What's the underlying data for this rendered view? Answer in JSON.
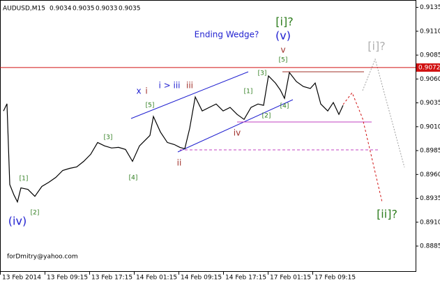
{
  "chart_data": {
    "type": "line",
    "symbol": "AUDUSD,M15",
    "ohlc": [
      0.9034,
      0.9035,
      0.9033,
      0.9035
    ],
    "x": [
      2.5,
      5,
      7,
      10,
      12.5,
      15,
      20,
      25,
      30,
      35,
      40,
      45,
      50,
      55,
      60,
      65,
      70,
      75,
      80,
      85,
      90,
      95,
      100,
      107.5,
      110,
      115,
      120,
      125,
      129,
      132.5,
      136,
      140,
      145,
      150,
      155,
      160,
      165,
      170,
      175,
      180,
      185,
      189,
      192.5,
      197.5,
      201,
      204,
      207.5,
      212.5,
      217.5,
      222.5,
      226,
      230,
      235,
      239,
      243,
      246
    ],
    "series": [
      {
        "name": "AUDUSD",
        "color": "#000000",
        "values": [
          0.90265,
          0.9034,
          0.89495,
          0.89385,
          0.89312,
          0.89459,
          0.89444,
          0.89371,
          0.89474,
          0.89518,
          0.89569,
          0.89642,
          0.89664,
          0.89679,
          0.89737,
          0.89811,
          0.89935,
          0.89899,
          0.89877,
          0.89884,
          0.89862,
          0.89737,
          0.89899,
          0.90009,
          0.90207,
          0.90045,
          0.89935,
          0.89913,
          0.89884,
          0.89869,
          0.90082,
          0.90412,
          0.90265,
          0.90302,
          0.90338,
          0.90265,
          0.90302,
          0.90229,
          0.90177,
          0.90302,
          0.90338,
          0.90324,
          0.90632,
          0.90558,
          0.90485,
          0.90397,
          0.90668,
          0.90573,
          0.90521,
          0.905,
          0.90558,
          0.90338,
          0.90265,
          0.90353,
          0.90229,
          0.90324
        ]
      }
    ],
    "current_price": 0.9072,
    "xlim": [
      0,
      298
    ],
    "xticks": [
      {
        "value": 0,
        "label": "13 Feb 2014"
      },
      {
        "value": 32,
        "label": "13 Feb 09:15"
      },
      {
        "value": 64,
        "label": "13 Feb 17:15"
      },
      {
        "value": 96,
        "label": "14 Feb 01:15"
      },
      {
        "value": 128,
        "label": "14 Feb 09:15"
      },
      {
        "value": 160,
        "label": "14 Feb 17:15"
      },
      {
        "value": 192,
        "label": "17 Feb 01:15"
      },
      {
        "value": 224,
        "label": "17 Feb 09:15"
      }
    ],
    "ylim": [
      0.8858,
      0.9142
    ],
    "yticks": [
      {
        "value": 0.9135,
        "label": "0.9135"
      },
      {
        "value": 0.911,
        "label": "0.9110"
      },
      {
        "value": 0.9085,
        "label": "0.9085"
      },
      {
        "value": 0.906,
        "label": "0.9060"
      },
      {
        "value": 0.9035,
        "label": "0.9035"
      },
      {
        "value": 0.901,
        "label": "0.9010"
      },
      {
        "value": 0.8985,
        "label": "0.8985"
      },
      {
        "value": 0.896,
        "label": "0.8960"
      },
      {
        "value": 0.8935,
        "label": "0.8935"
      },
      {
        "value": 0.891,
        "label": "0.8910"
      },
      {
        "value": 0.8885,
        "label": "0.8885"
      }
    ],
    "annotations": [
      {
        "text": "Ending Wedge?",
        "color": "#1f1fd0"
      },
      {
        "text": "[i]?",
        "color": "#2e7d1e"
      },
      {
        "text": "(v)",
        "color": "#1f1fd0"
      },
      {
        "text": "v",
        "color": "#a0302a"
      },
      {
        "text": "[5]",
        "color": "#2e7d1e"
      },
      {
        "text": "x",
        "color": "#1f1fd0"
      },
      {
        "text": "i",
        "color": "#a0302a"
      },
      {
        "text": "i > iii",
        "color": "#1f1fd0"
      },
      {
        "text": "iii",
        "color": "#a0302a"
      },
      {
        "text": "[5]",
        "color": "#2e7d1e"
      },
      {
        "text": "[3]",
        "color": "#2e7d1e"
      },
      {
        "text": "[4]",
        "color": "#2e7d1e"
      },
      {
        "text": "[1]",
        "color": "#2e7d1e"
      },
      {
        "text": "[2]",
        "color": "#2e7d1e"
      },
      {
        "text": "(iv)",
        "color": "#1f1fd0"
      },
      {
        "text": "ii",
        "color": "#a0302a"
      },
      {
        "text": "iv",
        "color": "#a0302a"
      },
      {
        "text": "[1]",
        "color": "#2e7d1e"
      },
      {
        "text": "[3]",
        "color": "#2e7d1e"
      },
      {
        "text": "[4]",
        "color": "#2e7d1e"
      },
      {
        "text": "[2]",
        "color": "#2e7d1e"
      },
      {
        "text": "[i]?",
        "color": "#b0b0b0"
      },
      {
        "text": "[ii]?",
        "color": "#2e7d1e"
      },
      {
        "text": "forDmitry@yahoo.com",
        "color": "#000000"
      }
    ]
  }
}
